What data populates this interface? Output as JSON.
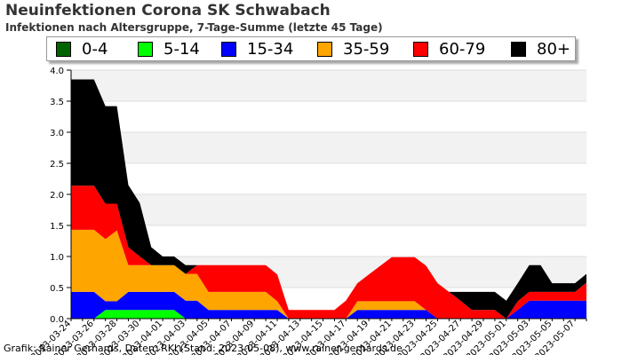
{
  "header": {
    "title": "Neuinfektionen Corona SK Schwabach",
    "subtitle": "Infektionen nach Altersgruppe, 7-Tage-Summe (letzte 45 Tage)"
  },
  "footer": {
    "credit": "Grafik: Rainer Gerhards, Daten: RKI (Stand: 2023-05-08), www.rainer-gerhards.de"
  },
  "chart_data": {
    "type": "area",
    "stacked": true,
    "title": "Neuinfektionen Corona SK Schwabach",
    "subtitle": "Infektionen nach Altersgruppe, 7-Tage-Summe (letzte 45 Tage)",
    "xlabel": "",
    "ylabel": "",
    "ylim": [
      0,
      4
    ],
    "yticks": [
      "0.0",
      "0.5",
      "1.0",
      "1.5",
      "2.0",
      "2.5",
      "3.0",
      "3.5",
      "4.0"
    ],
    "grid": true,
    "legend_position": "top",
    "x": [
      "2023-03-24",
      "2023-03-25",
      "2023-03-26",
      "2023-03-27",
      "2023-03-28",
      "2023-03-29",
      "2023-03-30",
      "2023-03-31",
      "2023-04-01",
      "2023-04-02",
      "2023-04-03",
      "2023-04-04",
      "2023-04-05",
      "2023-04-06",
      "2023-04-07",
      "2023-04-08",
      "2023-04-09",
      "2023-04-10",
      "2023-04-11",
      "2023-04-12",
      "2023-04-13",
      "2023-04-14",
      "2023-04-15",
      "2023-04-16",
      "2023-04-17",
      "2023-04-18",
      "2023-04-19",
      "2023-04-20",
      "2023-04-21",
      "2023-04-22",
      "2023-04-23",
      "2023-04-24",
      "2023-04-25",
      "2023-04-26",
      "2023-04-27",
      "2023-04-28",
      "2023-04-29",
      "2023-04-30",
      "2023-05-01",
      "2023-05-02",
      "2023-05-03",
      "2023-05-04",
      "2023-05-05",
      "2023-05-06",
      "2023-05-07",
      "2023-05-08"
    ],
    "x_tick_labels": [
      "2023-03-24",
      "2023-03-26",
      "2023-03-28",
      "2023-03-30",
      "2023-04-01",
      "2023-04-03",
      "2023-04-05",
      "2023-04-07",
      "2023-04-09",
      "2023-04-11",
      "2023-04-13",
      "2023-04-15",
      "2023-04-17",
      "2023-04-19",
      "2023-04-21",
      "2023-04-23",
      "2023-04-25",
      "2023-04-27",
      "2023-04-29",
      "2023-05-01",
      "2023-05-03",
      "2023-05-05",
      "2023-05-07"
    ],
    "series": [
      {
        "name": "0-4",
        "color": "#006400",
        "values": [
          0,
          0,
          0,
          0,
          0,
          0,
          0,
          0,
          0,
          0,
          0,
          0,
          0,
          0,
          0,
          0,
          0,
          0,
          0,
          0,
          0,
          0,
          0,
          0,
          0,
          0,
          0,
          0,
          0,
          0,
          0,
          0,
          0,
          0,
          0,
          0,
          0,
          0,
          0,
          0,
          0,
          0,
          0,
          0,
          0,
          0
        ]
      },
      {
        "name": "5-14",
        "color": "#00ff00",
        "values": [
          0,
          0,
          0,
          0.14,
          0.14,
          0.14,
          0.14,
          0.14,
          0.14,
          0.14,
          0,
          0,
          0,
          0,
          0,
          0,
          0,
          0,
          0,
          0,
          0,
          0,
          0,
          0,
          0,
          0,
          0,
          0,
          0,
          0,
          0,
          0,
          0,
          0,
          0,
          0,
          0,
          0,
          0,
          0,
          0,
          0,
          0,
          0,
          0,
          0
        ]
      },
      {
        "name": "15-34",
        "color": "#0000ff",
        "values": [
          0.43,
          0.43,
          0.43,
          0.14,
          0.14,
          0.29,
          0.29,
          0.29,
          0.29,
          0.29,
          0.29,
          0.29,
          0.14,
          0.14,
          0.14,
          0.14,
          0.14,
          0.14,
          0.14,
          0,
          0,
          0,
          0,
          0,
          0,
          0.14,
          0.14,
          0.14,
          0.14,
          0.14,
          0.14,
          0.14,
          0,
          0,
          0,
          0,
          0,
          0,
          0,
          0.14,
          0.29,
          0.29,
          0.29,
          0.29,
          0.29,
          0.29
        ]
      },
      {
        "name": "35-59",
        "color": "#ffa500",
        "values": [
          1,
          1,
          1,
          1,
          1.14,
          0.43,
          0.43,
          0.43,
          0.43,
          0.43,
          0.43,
          0.43,
          0.29,
          0.29,
          0.29,
          0.29,
          0.29,
          0.29,
          0.14,
          0,
          0,
          0,
          0,
          0,
          0,
          0.14,
          0.14,
          0.14,
          0.14,
          0.14,
          0.14,
          0,
          0,
          0,
          0,
          0,
          0,
          0,
          0,
          0,
          0,
          0,
          0,
          0,
          0,
          0
        ]
      },
      {
        "name": "60-79",
        "color": "#ff0000",
        "values": [
          0.71,
          0.71,
          0.71,
          0.57,
          0.43,
          0.29,
          0.14,
          0,
          0,
          0,
          0,
          0.14,
          0.43,
          0.43,
          0.43,
          0.43,
          0.43,
          0.43,
          0.43,
          0.14,
          0.14,
          0.14,
          0.14,
          0.14,
          0.29,
          0.29,
          0.43,
          0.57,
          0.71,
          0.71,
          0.71,
          0.71,
          0.57,
          0.43,
          0.29,
          0.14,
          0.14,
          0.14,
          0,
          0.14,
          0.14,
          0.14,
          0.14,
          0.14,
          0.14,
          0.29
        ]
      },
      {
        "name": "80+",
        "color": "#000000",
        "values": [
          1.71,
          1.71,
          1.71,
          1.57,
          1.57,
          1,
          0.86,
          0.29,
          0.14,
          0.14,
          0.14,
          0,
          0,
          0,
          0,
          0,
          0,
          0,
          0,
          0,
          0,
          0,
          0,
          0,
          0,
          0,
          0,
          0,
          0,
          0,
          0,
          0,
          0,
          0,
          0.14,
          0.29,
          0.29,
          0.29,
          0.29,
          0.29,
          0.43,
          0.43,
          0.14,
          0.14,
          0.14,
          0.14
        ]
      }
    ]
  }
}
